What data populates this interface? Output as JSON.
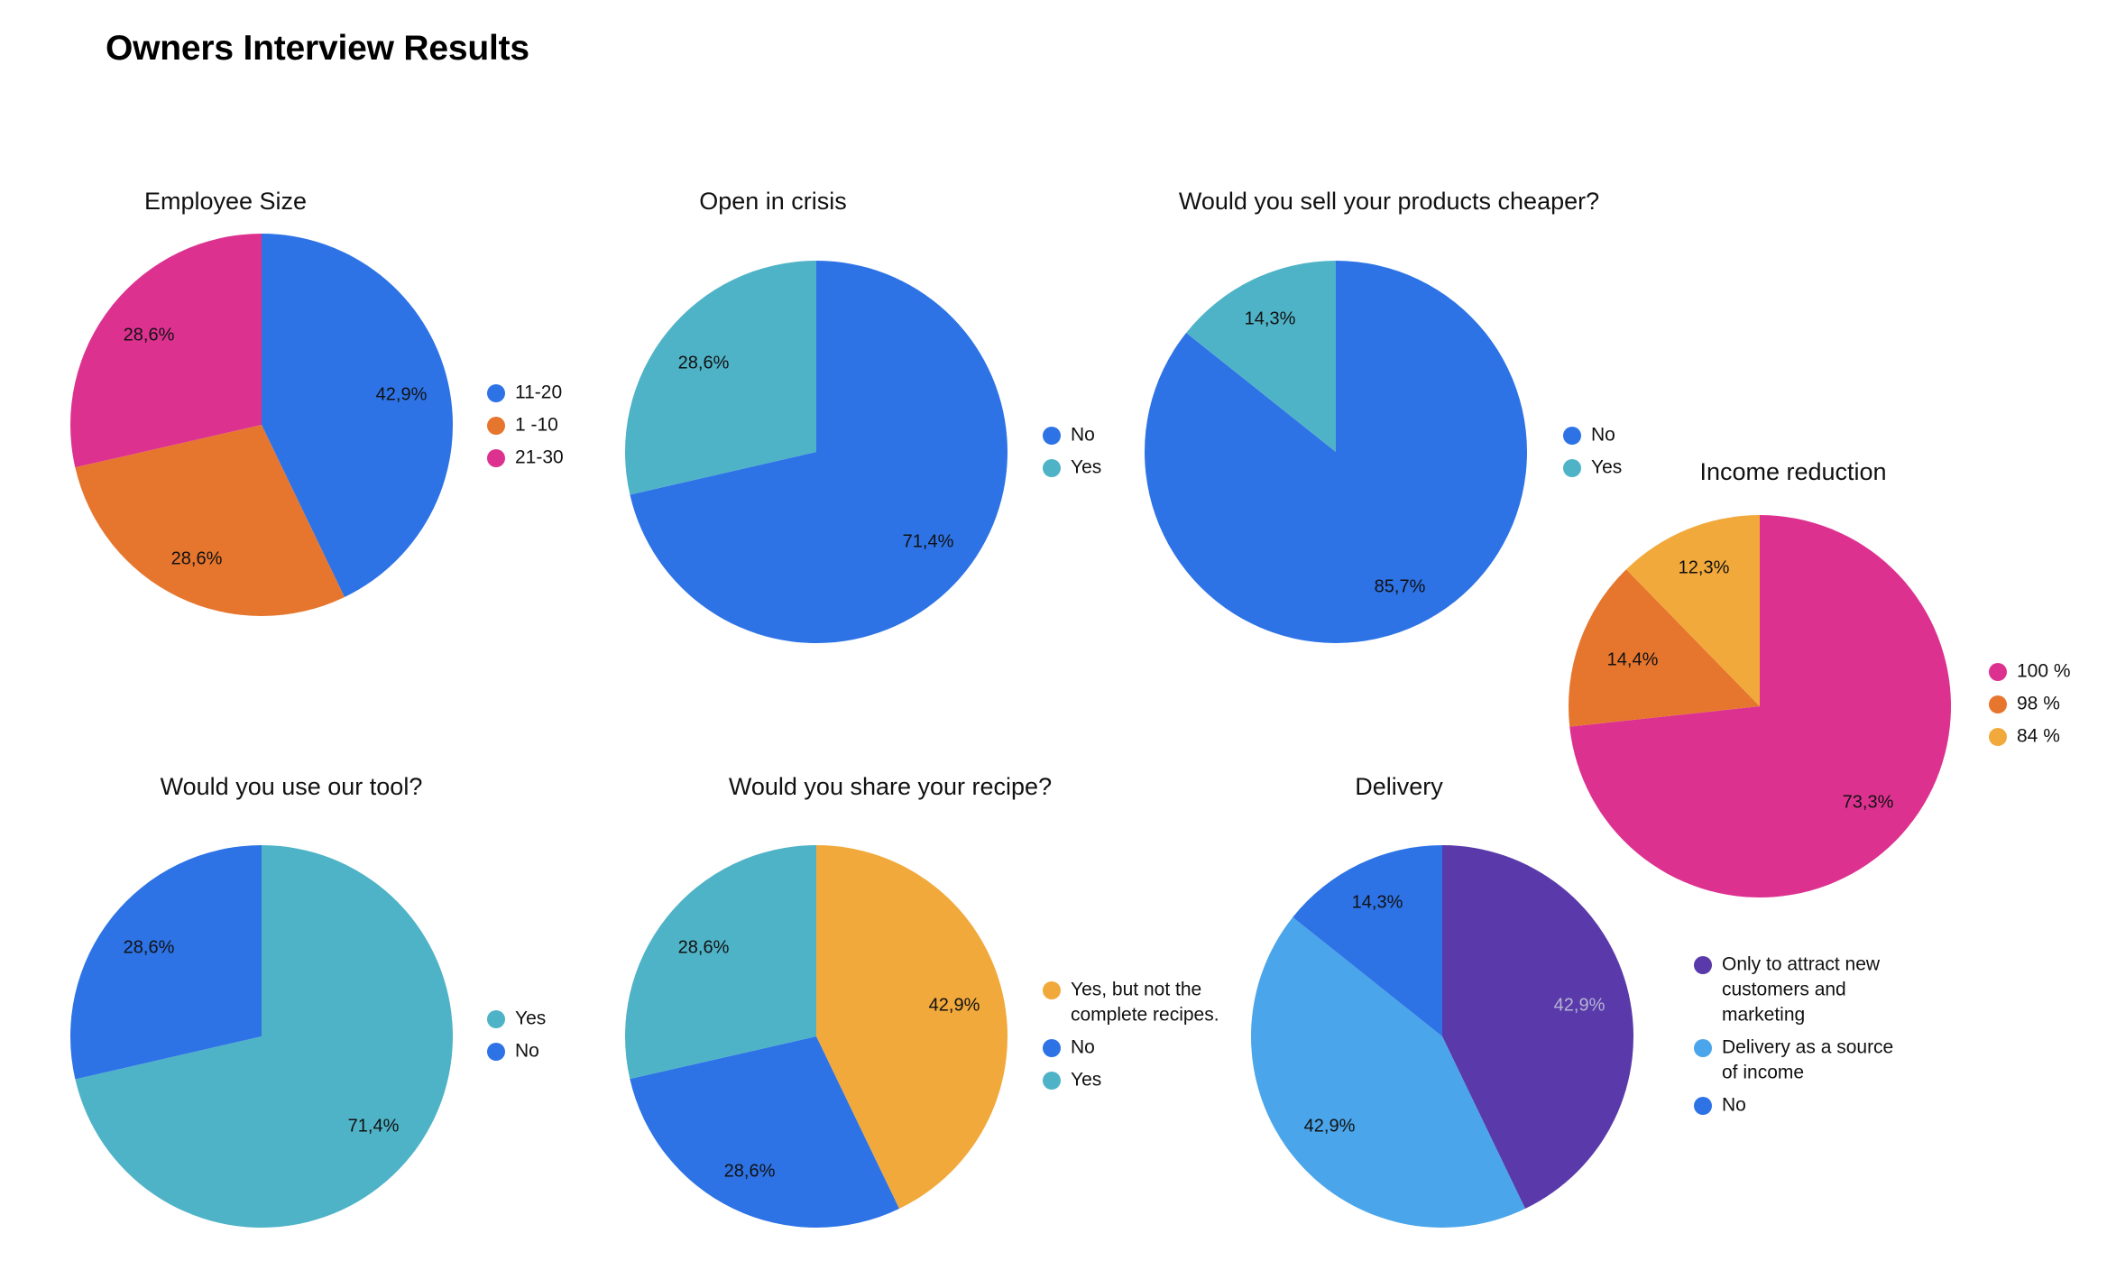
{
  "page": {
    "title": "Owners Interview Results"
  },
  "chart_data": [
    {
      "type": "pie",
      "title": "Employee Size",
      "slices": [
        {
          "label": "11-20",
          "value": 42.9,
          "display": "42,9%",
          "color": "#2d73e6"
        },
        {
          "label": "1 -10",
          "value": 28.6,
          "display": "28,6%",
          "color": "#e6762e"
        },
        {
          "label": "21-30",
          "value": 28.6,
          "display": "28,6%",
          "color": "#dd3190"
        }
      ],
      "legend_position": "right"
    },
    {
      "type": "pie",
      "title": "Open in crisis",
      "slices": [
        {
          "label": "No",
          "value": 71.4,
          "display": "71,4%",
          "color": "#2d73e6"
        },
        {
          "label": "Yes",
          "value": 28.6,
          "display": "28,6%",
          "color": "#4fb3c7"
        }
      ],
      "legend_position": "right"
    },
    {
      "type": "pie",
      "title": "Would you sell your products cheaper?",
      "slices": [
        {
          "label": "No",
          "value": 85.7,
          "display": "85,7%",
          "color": "#2d73e6"
        },
        {
          "label": "Yes",
          "value": 14.3,
          "display": "14,3%",
          "color": "#4fb3c7"
        }
      ],
      "legend_position": "right"
    },
    {
      "type": "pie",
      "title": "Income reduction",
      "slices": [
        {
          "label": "100 %",
          "value": 73.3,
          "display": "73,3%",
          "color": "#dd3190"
        },
        {
          "label": "98 %",
          "value": 14.4,
          "display": "14,4%",
          "color": "#e6762e"
        },
        {
          "label": "84 %",
          "value": 12.3,
          "display": "12,3%",
          "color": "#f2a93b"
        }
      ],
      "legend_position": "right"
    },
    {
      "type": "pie",
      "title": "Would you use our tool?",
      "slices": [
        {
          "label": "Yes",
          "value": 71.4,
          "display": "71,4%",
          "color": "#4fb3c7"
        },
        {
          "label": "No",
          "value": 28.6,
          "display": "28,6%",
          "color": "#2d73e6"
        }
      ],
      "legend_position": "right"
    },
    {
      "type": "pie",
      "title": "Would you share your recipe?",
      "slices": [
        {
          "label": "Yes, but not the complete recipes.",
          "value": 42.9,
          "display": "42,9%",
          "color": "#f2a93b"
        },
        {
          "label": "No",
          "value": 28.6,
          "display": "28,6%",
          "color": "#2d73e6"
        },
        {
          "label": "Yes",
          "value": 28.6,
          "display": "28,6%",
          "color": "#4fb3c7"
        }
      ],
      "legend_position": "right"
    },
    {
      "type": "pie",
      "title": "Delivery",
      "slices": [
        {
          "label": "Only to attract new customers and marketing",
          "value": 42.9,
          "display": "42,9%",
          "color": "#5a3aaa",
          "label_color": "#b4b4d6"
        },
        {
          "label": "Delivery as a source of income",
          "value": 42.9,
          "display": "42,9%",
          "color": "#4aa5ea"
        },
        {
          "label": "No",
          "value": 14.3,
          "display": "14,3%",
          "color": "#2d73e6"
        }
      ],
      "legend_position": "right"
    }
  ]
}
